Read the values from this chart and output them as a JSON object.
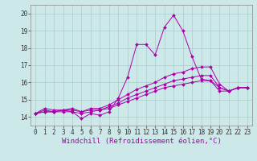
{
  "xlabel": "Windchill (Refroidissement éolien,°C)",
  "background_color": "#cce8e8",
  "grid_color": "#aacccc",
  "line_color": "#aa00aa",
  "xlim": [
    -0.5,
    23.5
  ],
  "ylim": [
    13.5,
    20.5
  ],
  "yticks": [
    14,
    15,
    16,
    17,
    18,
    19,
    20
  ],
  "xticks": [
    0,
    1,
    2,
    3,
    4,
    5,
    6,
    7,
    8,
    9,
    10,
    11,
    12,
    13,
    14,
    15,
    16,
    17,
    18,
    19,
    20,
    21,
    22,
    23
  ],
  "series": [
    [
      14.2,
      14.5,
      14.4,
      14.4,
      14.3,
      13.9,
      14.2,
      14.1,
      14.3,
      15.1,
      16.3,
      18.2,
      18.2,
      17.6,
      19.2,
      19.9,
      19.0,
      17.5,
      16.2,
      16.1,
      15.7,
      15.5,
      15.7,
      15.7
    ],
    [
      14.2,
      14.4,
      14.3,
      14.4,
      14.5,
      14.3,
      14.5,
      14.5,
      14.7,
      15.0,
      15.3,
      15.6,
      15.8,
      16.0,
      16.3,
      16.5,
      16.6,
      16.8,
      16.9,
      16.9,
      15.9,
      15.5,
      15.7,
      15.7
    ],
    [
      14.2,
      14.3,
      14.3,
      14.3,
      14.3,
      14.2,
      14.3,
      14.4,
      14.5,
      14.7,
      14.9,
      15.1,
      15.3,
      15.5,
      15.7,
      15.8,
      15.9,
      16.0,
      16.1,
      16.1,
      15.5,
      15.5,
      15.7,
      15.7
    ],
    [
      14.2,
      14.3,
      14.3,
      14.4,
      14.4,
      14.3,
      14.4,
      14.4,
      14.6,
      14.8,
      15.1,
      15.3,
      15.5,
      15.7,
      15.9,
      16.1,
      16.2,
      16.3,
      16.4,
      16.4,
      15.7,
      15.5,
      15.7,
      15.7
    ]
  ],
  "label_fontsize": 6.5,
  "tick_fontsize": 5.5
}
